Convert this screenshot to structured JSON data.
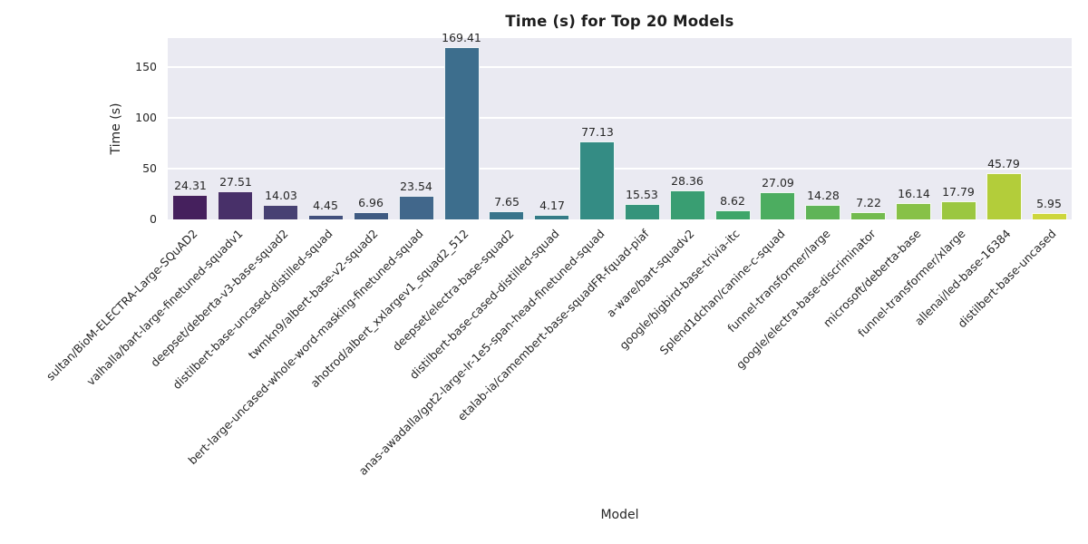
{
  "chart_data": {
    "type": "bar",
    "title": "Time (s) for Top 20 Models",
    "xlabel": "Model",
    "ylabel": "Time (s)",
    "categories": [
      "sultan/BioM-ELECTRA-Large-SQuAD2",
      "valhalla/bart-large-finetuned-squadv1",
      "deepset/deberta-v3-base-squad2",
      "distilbert-base-uncased-distilled-squad",
      "twmkn9/albert-base-v2-squad2",
      "bert-large-uncased-whole-word-masking-finetuned-squad",
      "ahotrod/albert_xxlargev1_squad2_512",
      "deepset/electra-base-squad2",
      "distilbert-base-cased-distilled-squad",
      "anas-awadalla/gpt2-large-lr-1e5-span-head-finetuned-squad",
      "etalab-ia/camembert-base-squadFR-fquad-piaf",
      "a-ware/bart-squadv2",
      "google/bigbird-base-trivia-itc",
      "Splend1dchan/canine-c-squad",
      "funnel-transformer/large",
      "google/electra-base-discriminator",
      "microsoft/deberta-base",
      "funnel-transformer/xlarge",
      "allenai/led-base-16384",
      "distilbert-base-uncased"
    ],
    "values": [
      24.31,
      27.51,
      14.03,
      4.45,
      6.96,
      23.54,
      169.41,
      7.65,
      4.17,
      77.13,
      15.53,
      28.36,
      8.62,
      27.09,
      14.28,
      7.22,
      16.14,
      17.79,
      45.79,
      5.95
    ],
    "value_label_format": "2 decimals above each bar",
    "bar_colors": [
      "#45205d",
      "#483069",
      "#474173",
      "#42507d",
      "#3f5b82",
      "#41678b",
      "#3d6e8d",
      "#38748b",
      "#347b87",
      "#348c84",
      "#35947b",
      "#399e72",
      "#3fa669",
      "#4cad60",
      "#5fb457",
      "#73bb4e",
      "#87c147",
      "#9bc740",
      "#b3cd3a",
      "#cdd63c"
    ],
    "yticks": [
      0,
      50,
      100,
      150
    ],
    "ylim": [
      0,
      178.5
    ],
    "x_tick_rotation": 45,
    "legend": "none",
    "grid": "horizontal white gridlines on seaborn darkgrid background",
    "colors": {
      "plot_background": "#eaeaf2",
      "figure_background": "#ffffff",
      "gridline": "#ffffff",
      "text": "#262626",
      "bar_edge": "#ffffff"
    }
  }
}
